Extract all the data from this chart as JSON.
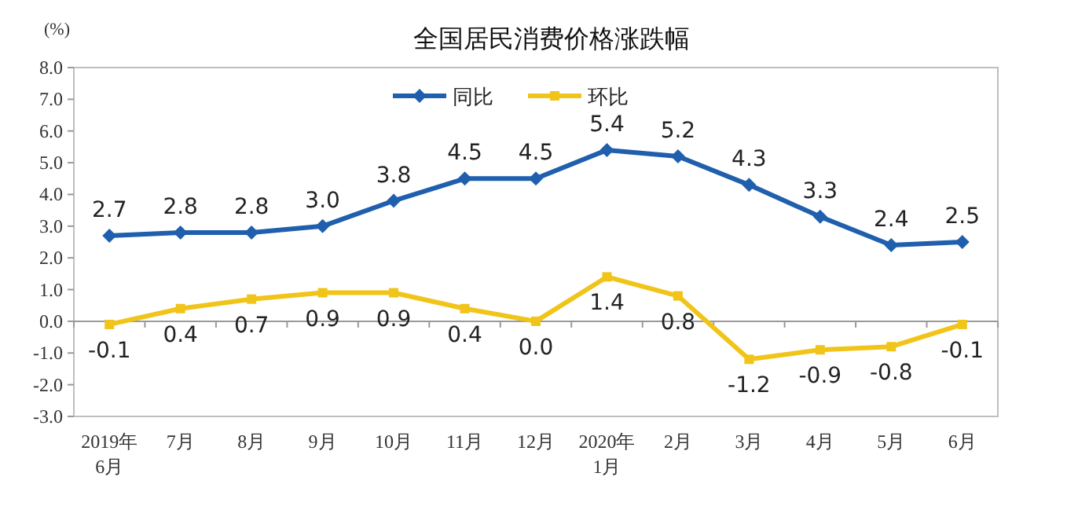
{
  "chart_data": {
    "type": "line",
    "title": "全国居民消费价格涨跌幅",
    "ylabel": "(%)",
    "categories": [
      "2019年\n6月",
      "7月",
      "8月",
      "9月",
      "10月",
      "11月",
      "12月",
      "2020年\n1月",
      "2月",
      "3月",
      "4月",
      "5月",
      "6月"
    ],
    "series": [
      {
        "name": "同比",
        "color": "#1f5fad",
        "marker": "diamond",
        "values": [
          2.7,
          2.8,
          2.8,
          3.0,
          3.8,
          4.5,
          4.5,
          5.4,
          5.2,
          4.3,
          3.3,
          2.4,
          2.5
        ],
        "value_labels": [
          "2.7",
          "2.8",
          "2.8",
          "3.0",
          "3.8",
          "4.5",
          "4.5",
          "5.4",
          "5.2",
          "4.3",
          "3.3",
          "2.4",
          "2.5"
        ]
      },
      {
        "name": "环比",
        "color": "#f0c419",
        "marker": "square",
        "values": [
          -0.1,
          0.4,
          0.7,
          0.9,
          0.9,
          0.4,
          0.0,
          1.4,
          0.8,
          -1.2,
          -0.9,
          -0.8,
          -0.1
        ],
        "value_labels": [
          "-0.1",
          "0.4",
          "0.7",
          "0.9",
          "0.9",
          "0.4",
          "0.0",
          "1.4",
          "0.8",
          "-1.2",
          "-0.9",
          "-0.8",
          "-0.1"
        ]
      }
    ],
    "ylim": [
      -3,
      8
    ],
    "yticks": [
      {
        "value": -3,
        "label": "-3.0"
      },
      {
        "value": -2,
        "label": "-2.0"
      },
      {
        "value": -1,
        "label": "-1.0"
      },
      {
        "value": 0,
        "label": "0.0"
      },
      {
        "value": 1,
        "label": "1.0"
      },
      {
        "value": 2,
        "label": "2.0"
      },
      {
        "value": 3,
        "label": "3.0"
      },
      {
        "value": 4,
        "label": "4.0"
      },
      {
        "value": 5,
        "label": "5.0"
      },
      {
        "value": 6,
        "label": "6.0"
      },
      {
        "value": 7,
        "label": "7.0"
      },
      {
        "value": 8,
        "label": "8.0"
      }
    ],
    "legend": "top",
    "line_style": "solid"
  }
}
